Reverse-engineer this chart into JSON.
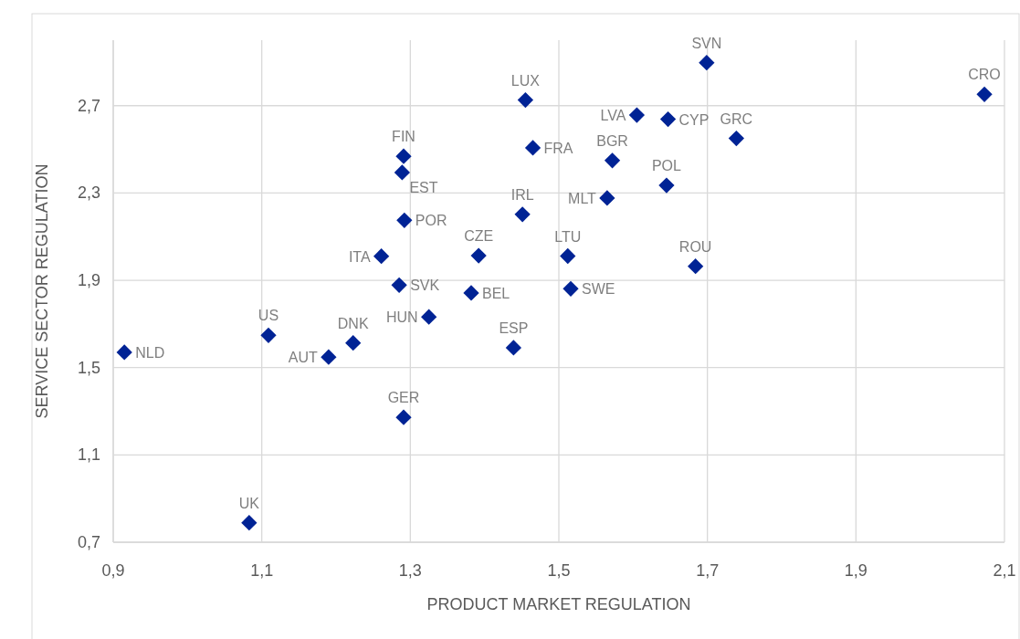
{
  "chart_data": {
    "type": "scatter",
    "xlabel": "PRODUCT MARKET REGULATION",
    "ylabel": "SERVICE SECTOR REGULATION",
    "xlim": [
      0.9,
      2.1
    ],
    "xticks": [
      {
        "value": 0.9,
        "label": "0,9"
      },
      {
        "value": 1.1,
        "label": "1,1"
      },
      {
        "value": 1.3,
        "label": "1,3"
      },
      {
        "value": 1.5,
        "label": "1,5"
      },
      {
        "value": 1.7,
        "label": "1,7"
      },
      {
        "value": 1.9,
        "label": "1,9"
      },
      {
        "value": 2.1,
        "label": "2,1"
      }
    ],
    "ylim": [
      0.7,
      3.0
    ],
    "yticks": [
      {
        "value": 0.7,
        "label": "0,7"
      },
      {
        "value": 1.1,
        "label": "1,1"
      },
      {
        "value": 1.5,
        "label": "1,5"
      },
      {
        "value": 1.9,
        "label": "1,9"
      },
      {
        "value": 2.3,
        "label": "2,3"
      },
      {
        "value": 2.7,
        "label": "2,7"
      }
    ],
    "grid": true,
    "marker": "diamond",
    "series": [
      {
        "name": "NLD",
        "color": "#002395",
        "x": [
          0.915
        ],
        "values": [
          1.57
        ]
      },
      {
        "name": "US",
        "color": "#002395",
        "x": [
          1.109
        ],
        "values": [
          1.648
        ]
      },
      {
        "name": "AUT",
        "color": "#002395",
        "x": [
          1.19
        ],
        "values": [
          1.548
        ]
      },
      {
        "name": "DNK",
        "color": "#002395",
        "x": [
          1.223
        ],
        "values": [
          1.613
        ]
      },
      {
        "name": "GER",
        "color": "#002395",
        "x": [
          1.291
        ],
        "values": [
          1.272
        ]
      },
      {
        "name": "UK",
        "color": "#002395",
        "x": [
          1.083
        ],
        "values": [
          0.789
        ]
      },
      {
        "name": "HUN",
        "color": "#002395",
        "x": [
          1.325
        ],
        "values": [
          1.732
        ]
      },
      {
        "name": "FIN",
        "color": "#002395",
        "x": [
          1.291
        ],
        "values": [
          2.468
        ]
      },
      {
        "name": "EST",
        "color": "#002395",
        "x": [
          1.289
        ],
        "values": [
          2.394
        ]
      },
      {
        "name": "POR",
        "color": "#002395",
        "x": [
          1.292
        ],
        "values": [
          2.175
        ]
      },
      {
        "name": "ITA",
        "color": "#002395",
        "x": [
          1.261
        ],
        "values": [
          2.01
        ]
      },
      {
        "name": "SVK",
        "color": "#002395",
        "x": [
          1.285
        ],
        "values": [
          1.878
        ]
      },
      {
        "name": "CZE",
        "color": "#002395",
        "x": [
          1.392
        ],
        "values": [
          2.013
        ]
      },
      {
        "name": "BEL",
        "color": "#002395",
        "x": [
          1.382
        ],
        "values": [
          1.842
        ]
      },
      {
        "name": "LUX",
        "color": "#002395",
        "x": [
          1.455
        ],
        "values": [
          2.726
        ]
      },
      {
        "name": "FRA",
        "color": "#002395",
        "x": [
          1.465
        ],
        "values": [
          2.507
        ]
      },
      {
        "name": "IRL",
        "color": "#002395",
        "x": [
          1.451
        ],
        "values": [
          2.202
        ]
      },
      {
        "name": "LTU",
        "color": "#002395",
        "x": [
          1.512
        ],
        "values": [
          2.011
        ]
      },
      {
        "name": "SWE",
        "color": "#002395",
        "x": [
          1.516
        ],
        "values": [
          1.861
        ]
      },
      {
        "name": "ESP",
        "color": "#002395",
        "x": [
          1.439
        ],
        "values": [
          1.591
        ]
      },
      {
        "name": "BGR",
        "color": "#002395",
        "x": [
          1.572
        ],
        "values": [
          2.449
        ]
      },
      {
        "name": "MLT",
        "color": "#002395",
        "x": [
          1.565
        ],
        "values": [
          2.277
        ]
      },
      {
        "name": "LVA",
        "color": "#002395",
        "x": [
          1.605
        ],
        "values": [
          2.657
        ]
      },
      {
        "name": "CYP",
        "color": "#002395",
        "x": [
          1.647
        ],
        "values": [
          2.638
        ]
      },
      {
        "name": "POL",
        "color": "#002395",
        "x": [
          1.645
        ],
        "values": [
          2.335
        ]
      },
      {
        "name": "SVN",
        "color": "#002395",
        "x": [
          1.699
        ],
        "values": [
          2.897
        ]
      },
      {
        "name": "GRC",
        "color": "#002395",
        "x": [
          1.739
        ],
        "values": [
          2.55
        ]
      },
      {
        "name": "ROU",
        "color": "#002395",
        "x": [
          1.684
        ],
        "values": [
          1.964
        ]
      },
      {
        "name": "CRO",
        "color": "#002395",
        "x": [
          2.073
        ],
        "values": [
          2.752
        ]
      }
    ]
  }
}
